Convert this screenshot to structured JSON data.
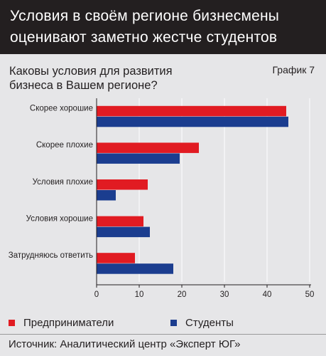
{
  "header": {
    "title_line1": "Условия в своём регионе бизнесмены",
    "title_line2": "оценивают заметно жестче студентов"
  },
  "question": {
    "line1": "Каковы условия для развития",
    "line2": "бизнеса в Вашем регионе?"
  },
  "chart_label": "График 7",
  "legend": {
    "entrepreneurs": "Предприниматели",
    "students": "Студенты"
  },
  "source": "Источник: Аналитический центр «Эксперт ЮГ»",
  "colors": {
    "entrepreneurs": "#e11b22",
    "students": "#1b3d8f",
    "header_bg": "#231f20",
    "panel_bg": "#e6e6e8",
    "grid": "#ffffff",
    "axis": "#231f20"
  },
  "chart_data": {
    "type": "bar",
    "orientation": "horizontal",
    "categories": [
      "Скорее хорошие",
      "Скорее плохие",
      "Условия плохие",
      "Условия хорошие",
      "Затрудняюсь ответить"
    ],
    "series": [
      {
        "name": "Предприниматели",
        "values": [
          44.5,
          24,
          12,
          11,
          9
        ]
      },
      {
        "name": "Студенты",
        "values": [
          45,
          19.5,
          4.5,
          12.5,
          18
        ]
      }
    ],
    "x_ticks": [
      0,
      10,
      20,
      30,
      40,
      50
    ],
    "xlim": [
      0,
      50
    ],
    "title": "Каковы условия для развития бизнеса в Вашем регионе?",
    "xlabel": "",
    "ylabel": "",
    "grid": true,
    "legend_position": "bottom"
  }
}
